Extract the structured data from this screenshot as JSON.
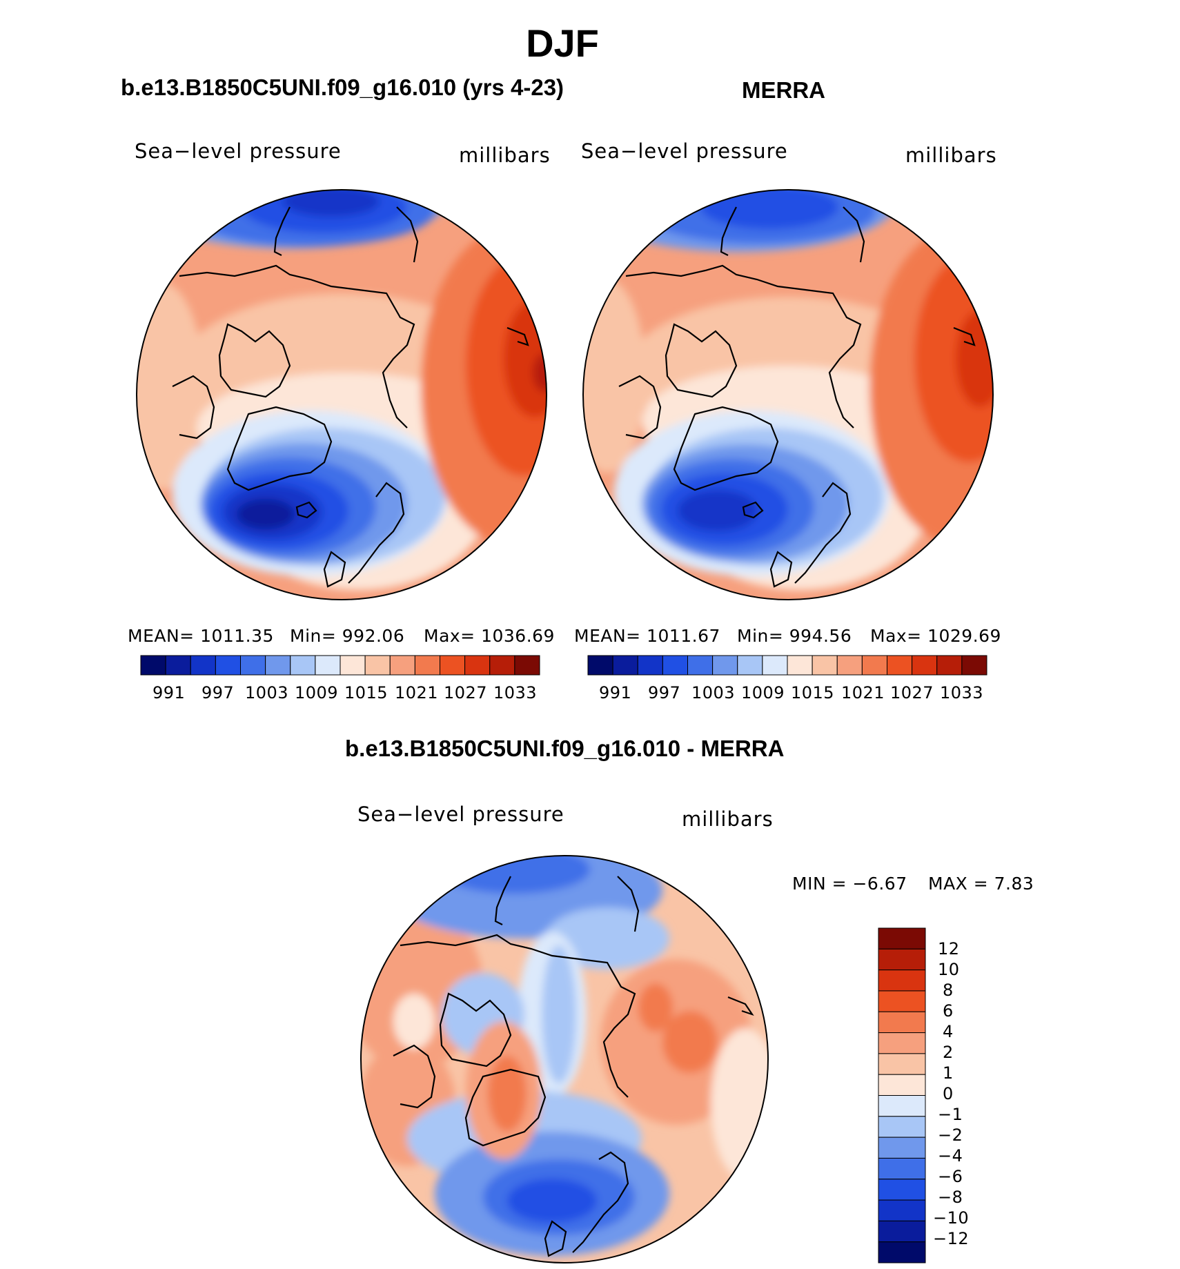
{
  "title": "DJF",
  "panels": [
    {
      "title": "b.e13.B1850C5UNI.f09_g16.010 (yrs 4-23)",
      "left_label": "Sea−level pressure",
      "right_label": "millibars",
      "stats": {
        "mean": "MEAN=  1011.35",
        "min": "Min=  992.06",
        "max": "Max=  1036.69"
      },
      "colorbar_ticks": [
        "991",
        "997",
        "1003",
        "1009",
        "1015",
        "1021",
        "1027",
        "1033"
      ]
    },
    {
      "title": "MERRA",
      "left_label": "Sea−level pressure",
      "right_label": "millibars",
      "stats": {
        "mean": "MEAN=  1011.67",
        "min": "Min=  994.56",
        "max": "Max=  1029.69"
      },
      "colorbar_ticks": [
        "991",
        "997",
        "1003",
        "1009",
        "1015",
        "1021",
        "1027",
        "1033"
      ]
    },
    {
      "title": "b.e13.B1850C5UNI.f09_g16.010 - MERRA",
      "left_label": "Sea−level pressure",
      "right_label": "millibars",
      "stats": {
        "min": "MIN =   −6.67",
        "max": "MAX =    7.83"
      },
      "colorbar_ticks": [
        "12",
        "10",
        "8",
        "6",
        "4",
        "2",
        "1",
        "0",
        "−1",
        "−2",
        "−4",
        "−6",
        "−8",
        "−10",
        "−12"
      ]
    }
  ],
  "colors": {
    "abs_scale": [
      "#000a6a",
      "#0a1c9c",
      "#1234c8",
      "#2050e4",
      "#3f6fe8",
      "#7098ec",
      "#a8c6f6",
      "#dce9fb",
      "#fde6d8",
      "#f9c4a6",
      "#f6a07e",
      "#f27a4e",
      "#ec5222",
      "#d93410",
      "#b61e08",
      "#7b0a04"
    ],
    "diff_scale": [
      "#7b0a04",
      "#b61e08",
      "#d93410",
      "#ec5222",
      "#f27a4e",
      "#f6a07e",
      "#f9c4a6",
      "#fde6d8",
      "#dce9fb",
      "#a8c6f6",
      "#7098ec",
      "#3f6fe8",
      "#2050e4",
      "#1234c8",
      "#0a1c9c",
      "#000a6a"
    ]
  }
}
